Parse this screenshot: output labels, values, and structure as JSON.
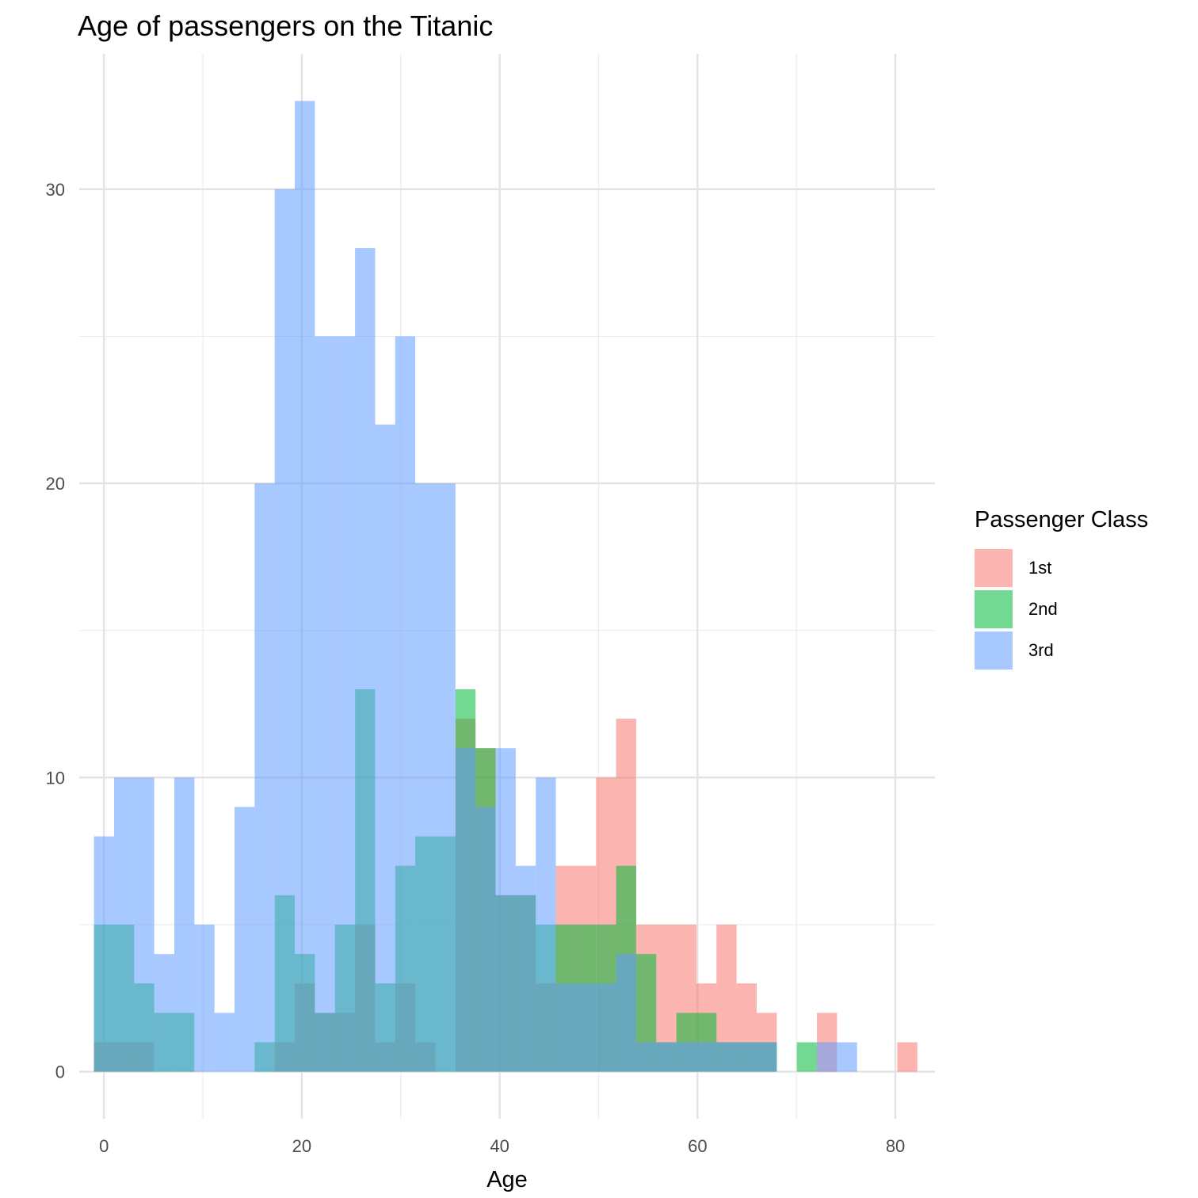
{
  "chart_data": {
    "type": "histogram",
    "title": "Age of passengers on the Titanic",
    "xlabel": "Age",
    "ylabel": "",
    "xlim": [
      -2.5,
      84
    ],
    "ylim": [
      -1.6,
      34.6
    ],
    "x_ticks": [
      0,
      20,
      40,
      60,
      80
    ],
    "y_ticks": [
      0,
      10,
      20,
      30
    ],
    "bin_width": 2.03,
    "bin_starts": [
      -1.01,
      1.02,
      3.05,
      5.08,
      7.11,
      9.14,
      11.17,
      13.2,
      15.23,
      17.26,
      19.29,
      21.32,
      23.35,
      25.38,
      27.41,
      29.44,
      31.47,
      33.5,
      35.53,
      37.56,
      39.59,
      41.62,
      43.65,
      45.68,
      47.71,
      49.74,
      51.77,
      53.8,
      55.83,
      57.86,
      59.89,
      61.92,
      63.95,
      65.98,
      68.01,
      70.04,
      72.07,
      74.1,
      76.13,
      78.16,
      80.19
    ],
    "grid": true,
    "legend": {
      "title": "Passenger Class",
      "position": "right"
    },
    "series": [
      {
        "name": "1st",
        "color": "#F8766D",
        "values": [
          1,
          1,
          1,
          0,
          0,
          0,
          0,
          0,
          0,
          1,
          3,
          2,
          2,
          5,
          1,
          3,
          1,
          0,
          12,
          11,
          6,
          6,
          3,
          7,
          7,
          10,
          12,
          5,
          5,
          5,
          3,
          5,
          3,
          2,
          0,
          0,
          2,
          0,
          0,
          0,
          1
        ]
      },
      {
        "name": "2nd",
        "color": "#00BA38",
        "values": [
          5,
          5,
          3,
          2,
          2,
          0,
          0,
          0,
          1,
          6,
          4,
          2,
          5,
          13,
          3,
          7,
          8,
          8,
          13,
          11,
          6,
          6,
          5,
          5,
          5,
          5,
          7,
          4,
          1,
          2,
          2,
          1,
          1,
          1,
          0,
          1,
          0,
          0,
          0,
          0,
          0
        ]
      },
      {
        "name": "3rd",
        "color": "#619CFF",
        "values": [
          8,
          10,
          10,
          4,
          10,
          5,
          2,
          9,
          20,
          30,
          33,
          25,
          25,
          28,
          22,
          25,
          20,
          20,
          11,
          9,
          11,
          7,
          10,
          3,
          3,
          3,
          4,
          1,
          1,
          1,
          1,
          1,
          1,
          1,
          0,
          0,
          1,
          1,
          0,
          0,
          0
        ]
      }
    ]
  }
}
